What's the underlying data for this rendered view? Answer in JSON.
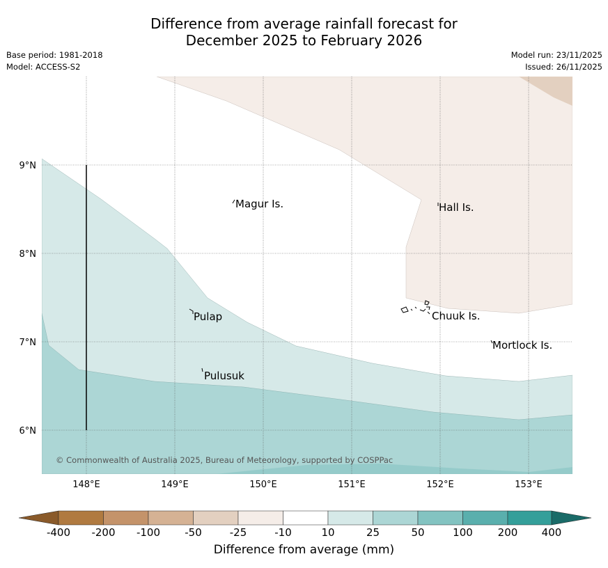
{
  "title": {
    "line1": "Difference from average rainfall forecast for",
    "line2": "December 2025 to February 2026"
  },
  "meta": {
    "base_period": "Base period: 1981-2018",
    "model": "Model: ACCESS-S2",
    "model_run": "Model run: 23/11/2025",
    "issued": "Issued: 26/11/2025"
  },
  "map": {
    "lon_range": [
      147.5,
      153.5
    ],
    "lat_range": [
      5.5,
      10.0
    ],
    "lon_ticks": [
      "148°E",
      "149°E",
      "150°E",
      "151°E",
      "152°E",
      "153°E"
    ],
    "lat_ticks": [
      "9°N",
      "8°N",
      "7°N",
      "6°N"
    ],
    "places": [
      {
        "name": "Magur Is."
      },
      {
        "name": "Hall Is."
      },
      {
        "name": "Pulap"
      },
      {
        "name": "Chuuk Is."
      },
      {
        "name": "Mortlock Is."
      },
      {
        "name": "Pulusuk"
      }
    ],
    "copyright": "© Commonwealth of Australia 2025, Bureau of Meteorology, supported by COSPPac"
  },
  "colorbar": {
    "title": "Difference from average (mm)",
    "ticks": [
      "-400",
      "-200",
      "-100",
      "-50",
      "-25",
      "-10",
      "10",
      "25",
      "50",
      "100",
      "200",
      "400"
    ],
    "colors": {
      "lt400": "#8a5a2a",
      "n400_200": "#b07a40",
      "n200_100": "#c4936a",
      "n100_50": "#d5b294",
      "n50_25": "#e3d0c0",
      "n25_10": "#f5ede8",
      "n10_10": "#ffffff",
      "p10_25": "#d6e9e8",
      "p25_50": "#acd6d5",
      "p50_100": "#83c3c1",
      "p100_200": "#5aafad",
      "p200_400": "#349f9a",
      "gt400": "#1a6b68"
    }
  }
}
